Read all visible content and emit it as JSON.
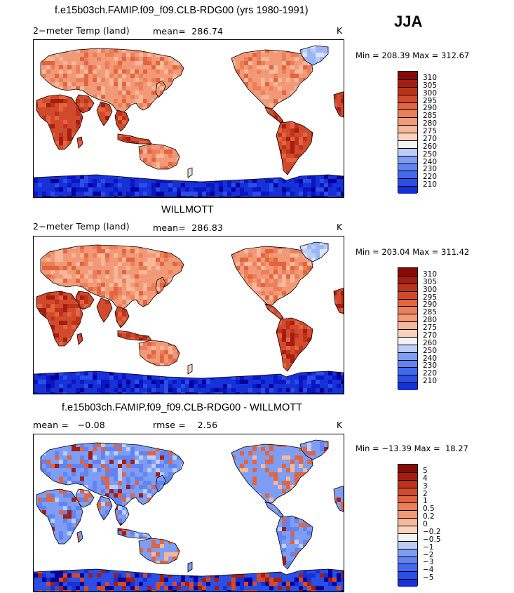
{
  "season": "JJA",
  "palette_pos": [
    "#f2f2f2",
    "#fad2bd",
    "#f6b79a",
    "#f29a78",
    "#ec7f5a",
    "#e26440",
    "#d24a2c",
    "#be321b",
    "#a51d10",
    "#8a0a06"
  ],
  "palette_neg": [
    "#05009a",
    "#0a15c4",
    "#1731d8",
    "#2a4ee6",
    "#4369ee",
    "#6184f2",
    "#7e9df4",
    "#9cb5f6",
    "#bccdf8",
    "#dae4fa"
  ],
  "panels": [
    {
      "title": "f.e15b03ch.FAMIP.f09_f09.CLB-RDG00 (yrs 1980-1991)",
      "left_label": "2−meter Temp (land)",
      "center_label": "mean=  286.74",
      "units": "K",
      "minmax": "Min = 208.39 Max = 312.67",
      "levels": [
        "310",
        "305",
        "300",
        "295",
        "290",
        "285",
        "280",
        "275",
        "270",
        "260",
        "250",
        "240",
        "230",
        "220",
        "210"
      ],
      "field": "model"
    },
    {
      "title": "WILLMOTT",
      "left_label": "2−meter Temp (land)",
      "center_label": "mean=  286.83",
      "units": "K",
      "minmax": "Min = 203.04 Max = 311.42",
      "levels": [
        "310",
        "305",
        "300",
        "295",
        "290",
        "285",
        "280",
        "275",
        "270",
        "260",
        "250",
        "240",
        "230",
        "220",
        "210"
      ],
      "field": "obs"
    },
    {
      "title": "f.e15b03ch.FAMIP.f09_f09.CLB-RDG00 - WILLMOTT",
      "left_label": "mean =   −0.08",
      "center_label": "rmse =    2.56",
      "units": "K",
      "minmax": "Min = −13.39 Max =  18.27",
      "levels": [
        "5",
        "4",
        "3",
        "2",
        "1",
        "0.5",
        "0.2",
        "0",
        "−0.2",
        "−0.5",
        "−1",
        "−2",
        "−3",
        "−4",
        "−5"
      ],
      "field": "diff"
    }
  ]
}
